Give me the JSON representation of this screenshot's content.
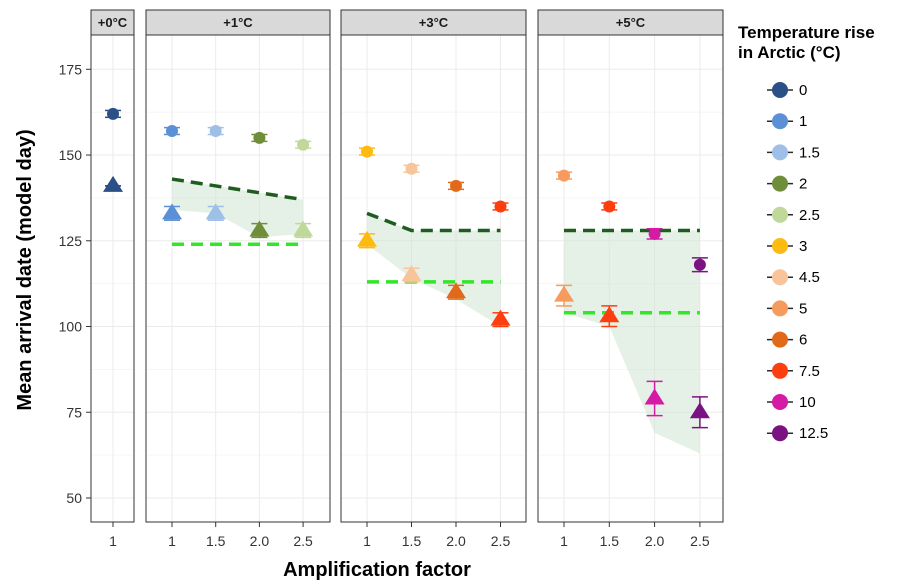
{
  "chart_data": {
    "type": "scatter",
    "ylabel": "Mean arrival date (model day)",
    "xlabel": "Amplification factor",
    "ylim": [
      43,
      185
    ],
    "yticks": [
      50,
      75,
      100,
      125,
      150,
      175
    ],
    "grid": true,
    "legend": {
      "title": [
        "Temperature rise",
        "in Arctic (°C)"
      ],
      "position": "right",
      "entries": [
        {
          "label": "0",
          "color": "#2b4f87"
        },
        {
          "label": "1",
          "color": "#5b8fd6"
        },
        {
          "label": "1.5",
          "color": "#9dbfe8"
        },
        {
          "label": "2",
          "color": "#6f8e3a"
        },
        {
          "label": "2.5",
          "color": "#c0d99a"
        },
        {
          "label": "3",
          "color": "#fdbb12"
        },
        {
          "label": "4.5",
          "color": "#f8c49a"
        },
        {
          "label": "5",
          "color": "#f79a5e"
        },
        {
          "label": "6",
          "color": "#e06a1a"
        },
        {
          "label": "7.5",
          "color": "#fd3f0f"
        },
        {
          "label": "10",
          "color": "#d51aa6"
        },
        {
          "label": "12.5",
          "color": "#7b1282"
        }
      ]
    },
    "panels": [
      {
        "title": "+0°C",
        "x_ticks": [
          "1"
        ],
        "circles": [
          {
            "x": "1",
            "y": 162,
            "err": 1,
            "color": "#2b4f87"
          }
        ],
        "triangles": [
          {
            "x": "1",
            "y": 141,
            "err": 0,
            "color": "#2b4f87"
          }
        ],
        "dark_line": [],
        "light_line": [],
        "ribbon": []
      },
      {
        "title": "+1°C",
        "x_ticks": [
          "1",
          "1.5",
          "2.0",
          "2.5"
        ],
        "circles": [
          {
            "x": "1",
            "y": 157,
            "err": 1,
            "color": "#5b8fd6"
          },
          {
            "x": "1.5",
            "y": 157,
            "err": 1,
            "color": "#9dbfe8"
          },
          {
            "x": "2.0",
            "y": 155,
            "err": 1,
            "color": "#6f8e3a"
          },
          {
            "x": "2.5",
            "y": 153,
            "err": 1,
            "color": "#c0d99a"
          }
        ],
        "triangles": [
          {
            "x": "1",
            "y": 133,
            "err": 2,
            "color": "#5b8fd6"
          },
          {
            "x": "1.5",
            "y": 133,
            "err": 2,
            "color": "#9dbfe8"
          },
          {
            "x": "2.0",
            "y": 128,
            "err": 2,
            "color": "#6f8e3a"
          },
          {
            "x": "2.5",
            "y": 128,
            "err": 2,
            "color": "#c0d99a"
          }
        ],
        "dark_line": [
          [
            "1",
            143
          ],
          [
            "2.5",
            137
          ]
        ],
        "light_line": [
          [
            "1",
            124
          ],
          [
            "2.5",
            124
          ]
        ],
        "ribbon": [
          [
            "1",
            143,
            134
          ],
          [
            "1.5",
            141,
            133
          ],
          [
            "2.0",
            139,
            126
          ],
          [
            "2.5",
            137,
            127
          ]
        ]
      },
      {
        "title": "+3°C",
        "x_ticks": [
          "1",
          "1.5",
          "2.0",
          "2.5"
        ],
        "circles": [
          {
            "x": "1",
            "y": 151,
            "err": 1,
            "color": "#fdbb12"
          },
          {
            "x": "1.5",
            "y": 146,
            "err": 1,
            "color": "#f8c49a"
          },
          {
            "x": "2.0",
            "y": 141,
            "err": 1,
            "color": "#e06a1a"
          },
          {
            "x": "2.5",
            "y": 135,
            "err": 1,
            "color": "#fd3f0f"
          }
        ],
        "triangles": [
          {
            "x": "1",
            "y": 125,
            "err": 2,
            "color": "#fdbb12"
          },
          {
            "x": "1.5",
            "y": 115,
            "err": 2,
            "color": "#f8c49a"
          },
          {
            "x": "2.0",
            "y": 110,
            "err": 2,
            "color": "#e06a1a"
          },
          {
            "x": "2.5",
            "y": 102,
            "err": 2,
            "color": "#fd3f0f"
          }
        ],
        "dark_line": [
          [
            "1",
            133
          ],
          [
            "1.5",
            128
          ],
          [
            "2.5",
            128
          ]
        ],
        "light_line": [
          [
            "1",
            113
          ],
          [
            "2.5",
            113
          ]
        ],
        "ribbon": [
          [
            "1",
            133,
            124
          ],
          [
            "1.5",
            128,
            114
          ],
          [
            "2.0",
            128,
            108
          ],
          [
            "2.5",
            128,
            100
          ]
        ]
      },
      {
        "title": "+5°C",
        "x_ticks": [
          "1",
          "1.5",
          "2.0",
          "2.5"
        ],
        "circles": [
          {
            "x": "1",
            "y": 144,
            "err": 1,
            "color": "#f79a5e"
          },
          {
            "x": "1.5",
            "y": 135,
            "err": 1,
            "color": "#fd3f0f"
          },
          {
            "x": "2.0",
            "y": 127,
            "err": 1.5,
            "color": "#d51aa6"
          },
          {
            "x": "2.5",
            "y": 118,
            "err": 2,
            "color": "#7b1282"
          }
        ],
        "triangles": [
          {
            "x": "1",
            "y": 109,
            "err": 3,
            "color": "#f79a5e"
          },
          {
            "x": "1.5",
            "y": 103,
            "err": 3,
            "color": "#fd3f0f"
          },
          {
            "x": "2.0",
            "y": 79,
            "err": 5,
            "color": "#d51aa6"
          },
          {
            "x": "2.5",
            "y": 75,
            "err": 4.5,
            "color": "#7b1282"
          }
        ],
        "dark_line": [
          [
            "1",
            128
          ],
          [
            "2.5",
            128
          ]
        ],
        "light_line": [
          [
            "1",
            104
          ],
          [
            "2.5",
            104
          ]
        ],
        "ribbon": [
          [
            "1",
            128,
            104
          ],
          [
            "1.5",
            128,
            100
          ],
          [
            "2.0",
            128,
            69
          ],
          [
            "2.5",
            128,
            63
          ]
        ]
      }
    ]
  }
}
